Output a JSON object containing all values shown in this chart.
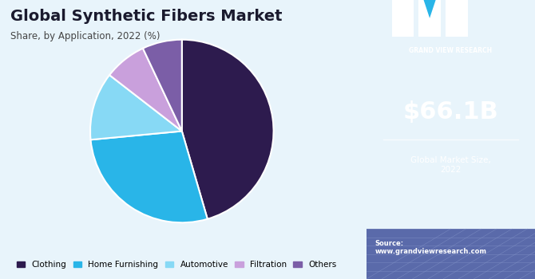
{
  "title": "Global Synthetic Fibers Market",
  "subtitle": "Share, by Application, 2022 (%)",
  "labels": [
    "Clothing",
    "Home Furnishing",
    "Automotive",
    "Filtration",
    "Others"
  ],
  "values": [
    45.5,
    28.0,
    12.0,
    7.5,
    7.0
  ],
  "colors": [
    "#2d1b4e",
    "#29b5e8",
    "#87d9f5",
    "#c9a0dc",
    "#7b5ea7"
  ],
  "legend_labels": [
    "Clothing",
    "Home Furnishing",
    "Automotive",
    "Filtration",
    "Others"
  ],
  "sidebar_bg": "#3a1c5e",
  "sidebar_accent": "#4b2080",
  "sidebar_bottom_bg": "#6a7fc1",
  "market_size": "$66.1B",
  "market_label": "Global Market Size,\n2022",
  "source_text": "Source:\nwww.grandviewresearch.com",
  "background_color": "#e8f4fb",
  "startangle": 90
}
